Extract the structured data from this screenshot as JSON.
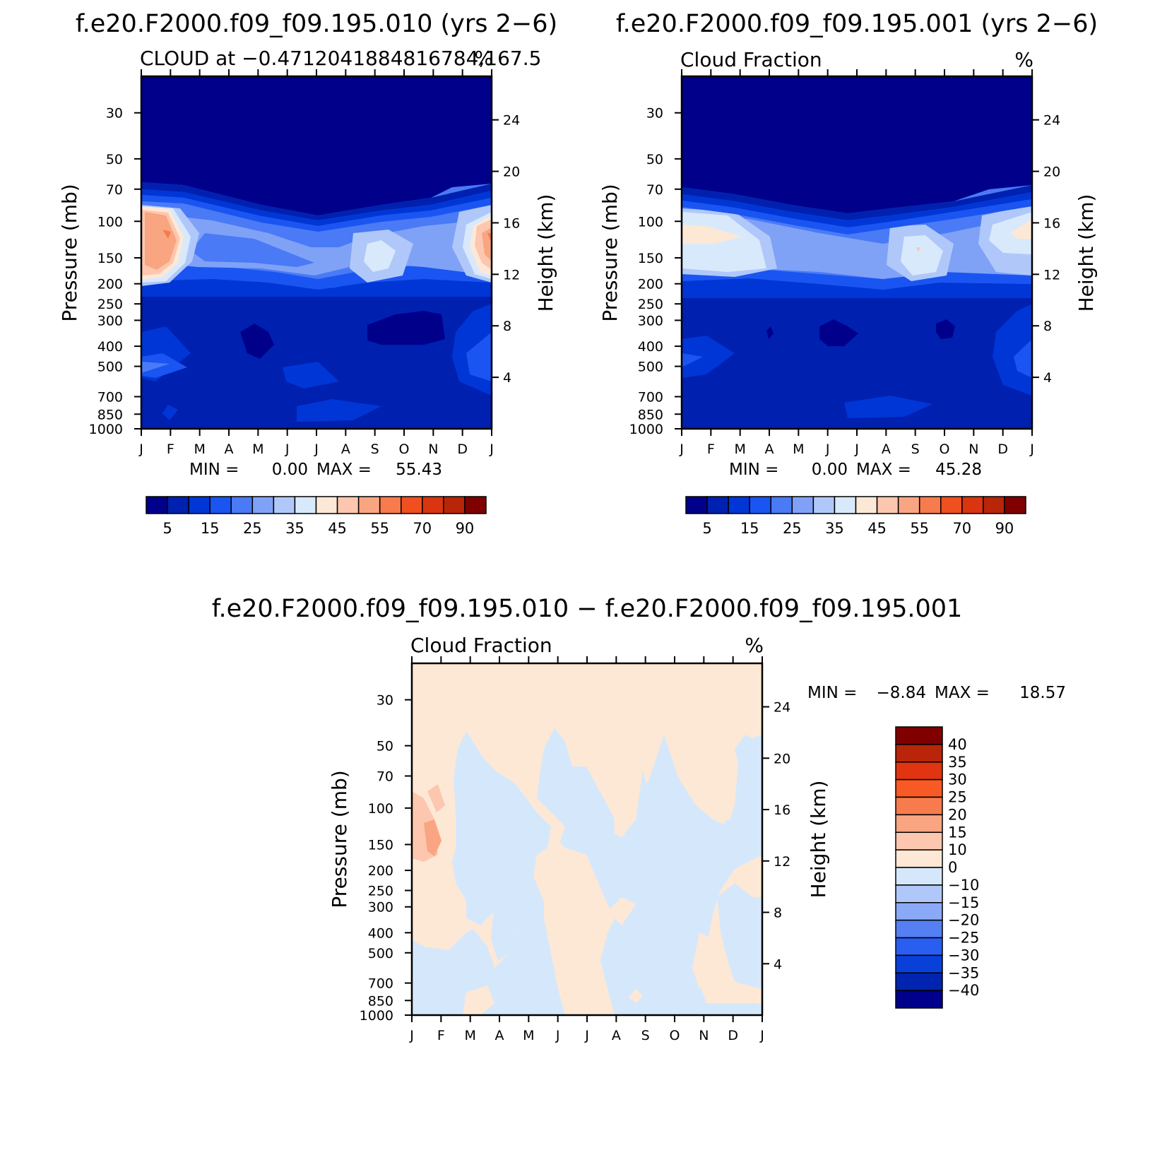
{
  "chart_data": [
    {
      "type": "heatmap",
      "title": "f.e20.F2000.f09_f09.195.010 (yrs 2−6)",
      "left_label": "CLOUD at −0.4712041884816784,167.5",
      "right_label": "%",
      "ylabel": "Pressure (mb)",
      "ylabel_right": "Height (km)",
      "x_ticklabels": [
        "J",
        "F",
        "M",
        "A",
        "M",
        "J",
        "J",
        "A",
        "S",
        "O",
        "N",
        "D",
        "J"
      ],
      "y_ticks": [
        30,
        50,
        70,
        100,
        150,
        200,
        250,
        300,
        400,
        500,
        700,
        850,
        1000
      ],
      "y_ticks_right": [
        24,
        20,
        16,
        12,
        8,
        4
      ],
      "ylim": [
        1000,
        20
      ],
      "y_scale": "log",
      "stats": {
        "min_label": "MIN =",
        "min": "0.00",
        "max_label": "MAX =",
        "max": "55.43"
      },
      "colorbar": {
        "orientation": "horizontal",
        "colors": [
          "#00008b",
          "#0020b0",
          "#0036d6",
          "#1a55f2",
          "#4a7af5",
          "#7fa2f7",
          "#b0c8f9",
          "#d9e9fc",
          "#fde8d6",
          "#fcc7ae",
          "#f9a582",
          "#f77b4d",
          "#f05020",
          "#d93510",
          "#b82508",
          "#800000"
        ],
        "tick_labels": [
          "5",
          "15",
          "25",
          "35",
          "45",
          "55",
          "70",
          "90"
        ]
      },
      "grid": false
    },
    {
      "type": "heatmap",
      "title": "f.e20.F2000.f09_f09.195.001 (yrs 2−6)",
      "left_label": "Cloud Fraction",
      "right_label": "%",
      "ylabel": "Pressure (mb)",
      "ylabel_right": "Height (km)",
      "x_ticklabels": [
        "J",
        "F",
        "M",
        "A",
        "M",
        "J",
        "J",
        "A",
        "S",
        "O",
        "N",
        "D",
        "J"
      ],
      "y_ticks": [
        30,
        50,
        70,
        100,
        150,
        200,
        250,
        300,
        400,
        500,
        700,
        850,
        1000
      ],
      "y_ticks_right": [
        24,
        20,
        16,
        12,
        8,
        4
      ],
      "ylim": [
        1000,
        20
      ],
      "y_scale": "log",
      "stats": {
        "min_label": "MIN =",
        "min": "0.00",
        "max_label": "MAX =",
        "max": "45.28"
      },
      "colorbar": {
        "orientation": "horizontal",
        "colors": [
          "#00008b",
          "#0020b0",
          "#0036d6",
          "#1a55f2",
          "#4a7af5",
          "#7fa2f7",
          "#b0c8f9",
          "#d9e9fc",
          "#fde8d6",
          "#fcc7ae",
          "#f9a582",
          "#f77b4d",
          "#f05020",
          "#d93510",
          "#b82508",
          "#800000"
        ],
        "tick_labels": [
          "5",
          "15",
          "25",
          "35",
          "45",
          "55",
          "70",
          "90"
        ]
      },
      "grid": false
    },
    {
      "type": "heatmap",
      "title": "f.e20.F2000.f09_f09.195.010 − f.e20.F2000.f09_f09.195.001",
      "left_label": "Cloud Fraction",
      "right_label": "%",
      "ylabel": "Pressure (mb)",
      "ylabel_right": "Height (km)",
      "x_ticklabels": [
        "J",
        "F",
        "M",
        "A",
        "M",
        "J",
        "J",
        "A",
        "S",
        "O",
        "N",
        "D",
        "J"
      ],
      "y_ticks": [
        30,
        50,
        70,
        100,
        150,
        200,
        250,
        300,
        400,
        500,
        700,
        850,
        1000
      ],
      "y_ticks_right": [
        24,
        20,
        16,
        12,
        8,
        4
      ],
      "ylim": [
        1000,
        20
      ],
      "y_scale": "log",
      "stats": {
        "min_label": "MIN =",
        "min": "−8.84",
        "max_label": "MAX =",
        "max": "18.57"
      },
      "colorbar": {
        "orientation": "vertical",
        "colors": [
          "#800000",
          "#b82508",
          "#e03510",
          "#f85a25",
          "#f77b4d",
          "#f9a582",
          "#fcc7ae",
          "#fde8d6",
          "#d5e8fb",
          "#b0c8f9",
          "#8aaaf7",
          "#5580f3",
          "#2a5ef0",
          "#0a40da",
          "#0024b0",
          "#00008b"
        ],
        "tick_labels": [
          "40",
          "35",
          "30",
          "25",
          "20",
          "15",
          "10",
          "0",
          "−10",
          "−15",
          "−20",
          "−25",
          "−30",
          "−35",
          "−40"
        ]
      },
      "grid": false
    }
  ]
}
